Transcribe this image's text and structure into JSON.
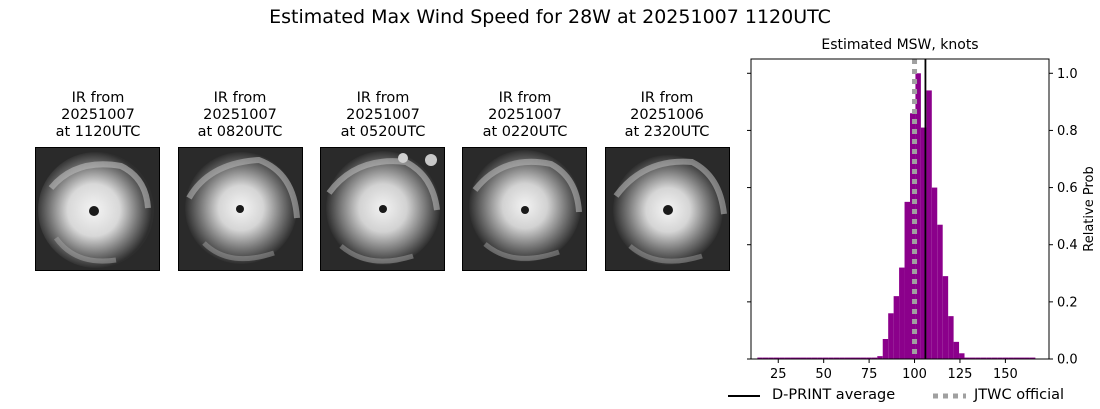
{
  "title": "Estimated Max Wind Speed for 28W at 20251007 1120UTC",
  "panels": [
    {
      "label": "IR from\n20251007\nat 1120UTC"
    },
    {
      "label": "IR from\n20251007\nat 0820UTC"
    },
    {
      "label": "IR from\n20251007\nat 0520UTC"
    },
    {
      "label": "IR from\n20251007\nat 0220UTC"
    },
    {
      "label": "IR from\n20251006\nat 2320UTC"
    }
  ],
  "colors": {
    "bars": "#8b008b",
    "dprint_line": "#000000",
    "jtwc_line": "#a0a0a0"
  },
  "chart_data": {
    "type": "bar",
    "title": "Estimated MSW, knots",
    "xlabel": "",
    "ylabel": "Relative Prob",
    "xlim": [
      10,
      174
    ],
    "ylim": [
      0,
      1.05
    ],
    "xticks": [
      25,
      50,
      75,
      100,
      125,
      150
    ],
    "yticks": [
      0.0,
      0.2,
      0.4,
      0.6,
      0.8,
      1.0
    ],
    "ytick_labels": [
      "0.0",
      "0.2",
      "0.4",
      "0.6",
      "0.8",
      "1.0"
    ],
    "y_axis_position": "right",
    "grid": false,
    "bin_width": 3,
    "bins": [
      {
        "x": 15,
        "y": 0.005
      },
      {
        "x": 18,
        "y": 0.005
      },
      {
        "x": 21,
        "y": 0.005
      },
      {
        "x": 24,
        "y": 0.005
      },
      {
        "x": 27,
        "y": 0.005
      },
      {
        "x": 30,
        "y": 0.005
      },
      {
        "x": 33,
        "y": 0.005
      },
      {
        "x": 36,
        "y": 0.005
      },
      {
        "x": 39,
        "y": 0.005
      },
      {
        "x": 42,
        "y": 0.005
      },
      {
        "x": 45,
        "y": 0.005
      },
      {
        "x": 48,
        "y": 0.005
      },
      {
        "x": 51,
        "y": 0.005
      },
      {
        "x": 54,
        "y": 0.005
      },
      {
        "x": 57,
        "y": 0.005
      },
      {
        "x": 60,
        "y": 0.005
      },
      {
        "x": 63,
        "y": 0.005
      },
      {
        "x": 66,
        "y": 0.005
      },
      {
        "x": 69,
        "y": 0.005
      },
      {
        "x": 72,
        "y": 0.005
      },
      {
        "x": 75,
        "y": 0.005
      },
      {
        "x": 78,
        "y": 0.005
      },
      {
        "x": 81,
        "y": 0.01
      },
      {
        "x": 84,
        "y": 0.07
      },
      {
        "x": 87,
        "y": 0.16
      },
      {
        "x": 90,
        "y": 0.22
      },
      {
        "x": 93,
        "y": 0.32
      },
      {
        "x": 96,
        "y": 0.55
      },
      {
        "x": 99,
        "y": 0.86
      },
      {
        "x": 102,
        "y": 1.0
      },
      {
        "x": 105,
        "y": 0.81
      },
      {
        "x": 108,
        "y": 0.94
      },
      {
        "x": 111,
        "y": 0.6
      },
      {
        "x": 114,
        "y": 0.47
      },
      {
        "x": 117,
        "y": 0.29
      },
      {
        "x": 120,
        "y": 0.15
      },
      {
        "x": 123,
        "y": 0.06
      },
      {
        "x": 126,
        "y": 0.02
      },
      {
        "x": 129,
        "y": 0.005
      },
      {
        "x": 132,
        "y": 0.005
      },
      {
        "x": 135,
        "y": 0.005
      },
      {
        "x": 138,
        "y": 0.005
      },
      {
        "x": 141,
        "y": 0.005
      },
      {
        "x": 144,
        "y": 0.005
      },
      {
        "x": 147,
        "y": 0.005
      },
      {
        "x": 150,
        "y": 0.005
      },
      {
        "x": 153,
        "y": 0.005
      },
      {
        "x": 156,
        "y": 0.005
      },
      {
        "x": 159,
        "y": 0.005
      },
      {
        "x": 162,
        "y": 0.005
      },
      {
        "x": 165,
        "y": 0.005
      }
    ],
    "dprint_average": 106,
    "jtwc_official": 100,
    "legend": [
      {
        "label": "D-PRINT average",
        "style": "solid"
      },
      {
        "label": "JTWC official",
        "style": "dotted"
      }
    ],
    "legend_position": "bottom"
  }
}
